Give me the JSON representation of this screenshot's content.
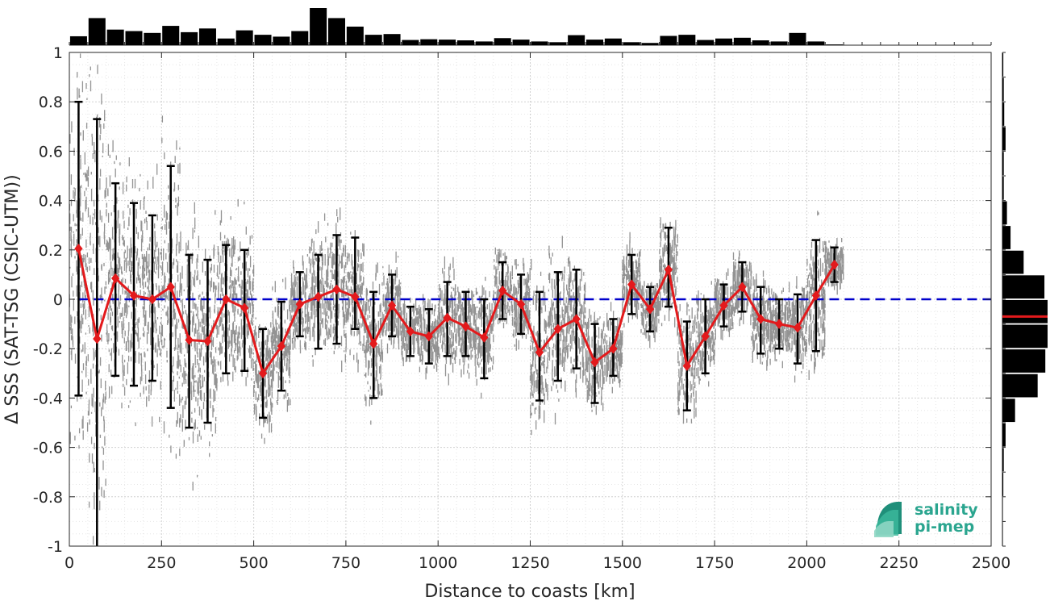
{
  "chart_data": {
    "type": "line",
    "xlabel": "Distance to coasts [km]",
    "ylabel": "Δ SSS (SAT-TSG (CSIC-UTM))",
    "xlim": [
      0,
      2500
    ],
    "ylim": [
      -1,
      1
    ],
    "xticks": [
      0,
      250,
      500,
      750,
      1000,
      1250,
      1500,
      1750,
      2000,
      2250,
      2500
    ],
    "yticks": [
      -1,
      -0.8,
      -0.6,
      -0.4,
      -0.2,
      0,
      0.2,
      0.4,
      0.6,
      0.8,
      1
    ],
    "grid": true,
    "x": [
      25,
      75,
      125,
      175,
      225,
      275,
      325,
      375,
      425,
      475,
      525,
      575,
      625,
      675,
      725,
      775,
      825,
      875,
      925,
      975,
      1025,
      1075,
      1125,
      1175,
      1225,
      1275,
      1325,
      1375,
      1425,
      1475,
      1525,
      1575,
      1625,
      1675,
      1725,
      1775,
      1825,
      1875,
      1925,
      1975,
      2025,
      2075
    ],
    "series": [
      {
        "color": "#e31a1c",
        "marker": "diamond",
        "values": [
          0.205,
          -0.16,
          0.085,
          0.015,
          0.0,
          0.05,
          -0.165,
          -0.17,
          0.0,
          -0.035,
          -0.3,
          -0.19,
          -0.02,
          0.01,
          0.04,
          0.01,
          -0.18,
          -0.025,
          -0.13,
          -0.15,
          -0.075,
          -0.11,
          -0.155,
          0.035,
          -0.02,
          -0.215,
          -0.12,
          -0.08,
          -0.255,
          -0.2,
          0.06,
          -0.04,
          0.12,
          -0.27,
          -0.15,
          -0.025,
          0.05,
          -0.08,
          -0.1,
          -0.115,
          0.015,
          0.14
        ],
        "error_low": [
          -0.39,
          -1.0,
          -0.31,
          -0.35,
          -0.33,
          -0.44,
          -0.52,
          -0.5,
          -0.3,
          -0.29,
          -0.48,
          -0.37,
          -0.15,
          -0.2,
          -0.18,
          -0.12,
          -0.4,
          -0.15,
          -0.23,
          -0.26,
          -0.23,
          -0.23,
          -0.32,
          -0.08,
          -0.14,
          -0.41,
          -0.33,
          -0.28,
          -0.42,
          -0.31,
          -0.06,
          -0.13,
          -0.03,
          -0.45,
          -0.3,
          -0.11,
          -0.05,
          -0.22,
          -0.2,
          -0.26,
          -0.21,
          0.07
        ],
        "error_high": [
          0.8,
          0.73,
          0.47,
          0.39,
          0.34,
          0.54,
          0.18,
          0.16,
          0.22,
          0.2,
          -0.12,
          -0.01,
          0.11,
          0.18,
          0.26,
          0.25,
          0.03,
          0.1,
          -0.03,
          -0.04,
          0.07,
          0.03,
          0.0,
          0.15,
          0.1,
          0.03,
          0.11,
          0.12,
          -0.1,
          -0.08,
          0.18,
          0.05,
          0.29,
          -0.09,
          0.0,
          0.06,
          0.15,
          0.05,
          0.0,
          0.02,
          0.24,
          0.21
        ]
      }
    ],
    "reference_line": {
      "y": 0,
      "color": "#0000cc",
      "style": "dashed"
    },
    "scatter_color": "#808080",
    "top_histogram": {
      "bins_x": [
        25,
        75,
        125,
        175,
        225,
        275,
        325,
        375,
        425,
        475,
        525,
        575,
        625,
        675,
        725,
        775,
        825,
        875,
        925,
        975,
        1025,
        1075,
        1125,
        1175,
        1225,
        1275,
        1325,
        1375,
        1425,
        1475,
        1525,
        1575,
        1625,
        1675,
        1725,
        1775,
        1825,
        1875,
        1925,
        1975,
        2025,
        2075
      ],
      "heights": [
        0.24,
        0.73,
        0.42,
        0.38,
        0.33,
        0.52,
        0.35,
        0.45,
        0.18,
        0.4,
        0.28,
        0.23,
        0.38,
        1.0,
        0.73,
        0.5,
        0.28,
        0.3,
        0.14,
        0.16,
        0.15,
        0.13,
        0.1,
        0.19,
        0.15,
        0.1,
        0.08,
        0.27,
        0.15,
        0.18,
        0.08,
        0.06,
        0.25,
        0.28,
        0.14,
        0.18,
        0.2,
        0.13,
        0.1,
        0.33,
        0.1,
        0.02
      ]
    },
    "right_histogram": {
      "bins_y": [
        0.95,
        0.85,
        0.75,
        0.65,
        0.55,
        0.45,
        0.35,
        0.25,
        0.15,
        0.05,
        -0.05,
        -0.15,
        -0.25,
        -0.35,
        -0.45,
        -0.55,
        -0.65,
        -0.75,
        -0.85,
        -0.95
      ],
      "widths": [
        0.02,
        0.03,
        0.04,
        0.07,
        0.03,
        0.03,
        0.1,
        0.18,
        0.47,
        0.93,
        1.0,
        1.0,
        0.95,
        0.78,
        0.28,
        0.07,
        0.03,
        0.02,
        0.01,
        0.01
      ],
      "mean_marker": {
        "y": -0.07,
        "color": "#e31a1c"
      }
    }
  },
  "logo": {
    "line1": "salinity",
    "line2": "pi-mep"
  }
}
